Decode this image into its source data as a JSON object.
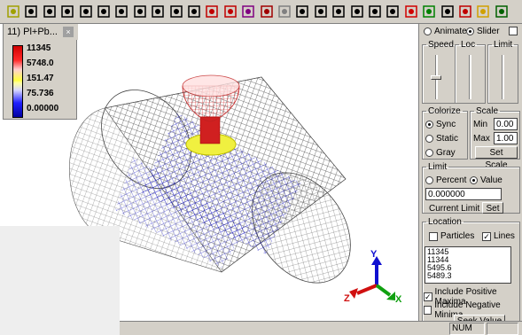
{
  "toolbar": {
    "icons": [
      "open-icon",
      "zoom-icon",
      "rotate-icon",
      "rotate2-icon",
      "pan-icon",
      "fit-icon",
      "axes-icon",
      "zoom-in-icon",
      "zoom-out-icon",
      "zoom-box-icon",
      "find-icon",
      "render1-icon",
      "render2-icon",
      "render3-icon",
      "render4-icon",
      "sphere-icon",
      "hand-icon",
      "view1-icon",
      "view2-icon",
      "view3-icon",
      "view4-icon",
      "triangle-icon",
      "refresh-icon",
      "chart-icon",
      "graph-icon",
      "probe-icon",
      "bulb-icon",
      "grid-icon"
    ]
  },
  "legend": {
    "title": "11) Pl+Pb...",
    "close": "×",
    "values": [
      "11345",
      "5748.0",
      "151.47",
      "75.736",
      "0.00000"
    ]
  },
  "panel": {
    "animate_label": "Animate",
    "slider_label": "Slider",
    "speed_label": "Speed",
    "loc_label": "Loc",
    "limit_label": "Limit",
    "colorize_label": "Colorize",
    "sync_label": "Sync",
    "static_label": "Static",
    "gray_label": "Gray",
    "scale_label": "Scale",
    "min_label": "Min",
    "min_value": "0.00",
    "max_label": "Max",
    "max_value": "1.00",
    "set_scale": "Set Scale",
    "limit_group": "Limit",
    "percent_label": "Percent",
    "value_label": "Value",
    "limit_value": "0.000000",
    "current_limit": "Current Limit",
    "set_label": "Set",
    "location_label": "Location",
    "particles_label": "Particles",
    "lines_label": "Lines",
    "list_items": [
      "11345",
      "11344",
      "5495.6",
      "5489.3"
    ],
    "include_pos": "Include Positive Maxima",
    "include_neg": "Include Negative Minima",
    "seek_value": "Seek Value"
  },
  "status": {
    "num": "NUM"
  },
  "axes": {
    "x": "X",
    "y": "Y",
    "z": "Z"
  }
}
